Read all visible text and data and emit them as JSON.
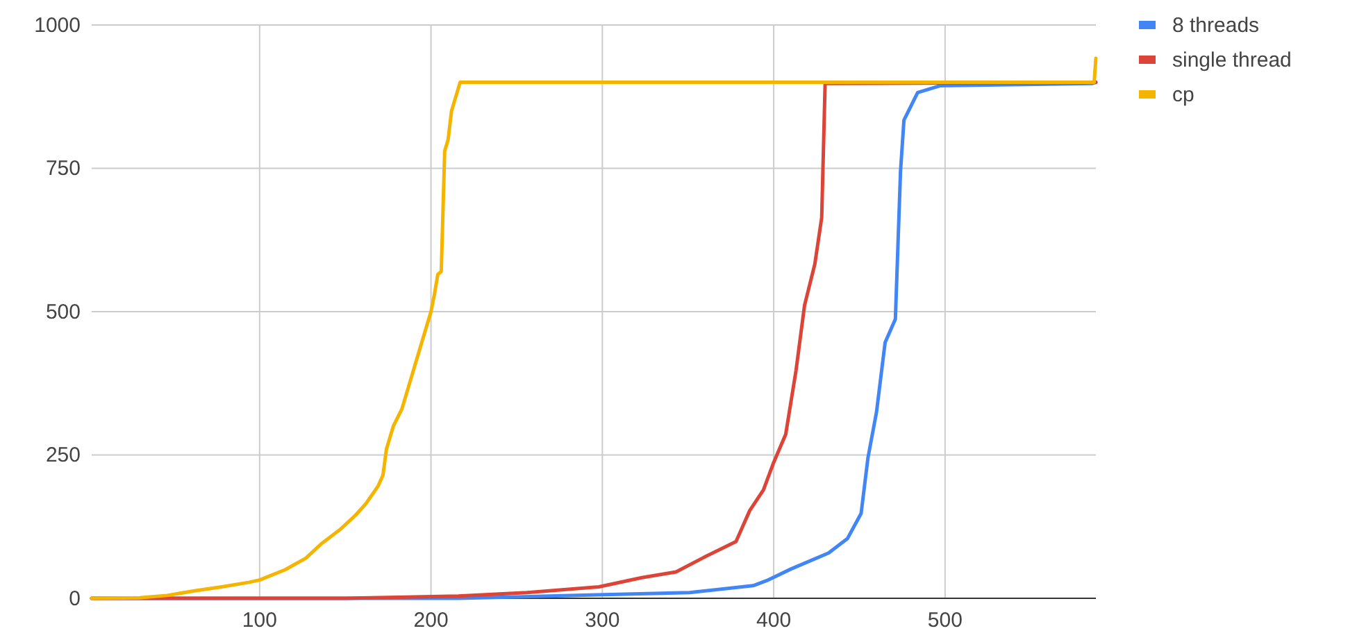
{
  "chart_data": {
    "type": "line",
    "xlim": [
      2,
      588
    ],
    "ylim": [
      0,
      1000
    ],
    "xticks": [
      100,
      200,
      300,
      400,
      500
    ],
    "yticks": [
      0,
      250,
      500,
      750,
      1000
    ],
    "grid": true,
    "legend": "top right",
    "marker": "none",
    "line_style": "solid",
    "series": [
      {
        "name": "8 threads",
        "color": "#4285f4",
        "x": [
          2,
          216,
          297,
          351,
          388,
          396,
          410,
          432,
          443,
          451,
          455,
          460,
          465,
          471,
          474,
          476,
          484,
          497,
          586,
          588
        ],
        "values": [
          0,
          0,
          6,
          10,
          22,
          31,
          51,
          79,
          104,
          148,
          245,
          325,
          446,
          487,
          745,
          834,
          882,
          894,
          898,
          900
        ]
      },
      {
        "name": "single thread",
        "color": "#db4437",
        "x": [
          2,
          150,
          216,
          256,
          298,
          323,
          343,
          359,
          378,
          386,
          394,
          400,
          407,
          413,
          418,
          424,
          428,
          430,
          588
        ],
        "values": [
          0,
          0,
          4,
          10,
          20,
          36,
          46,
          71,
          99,
          153,
          189,
          237,
          286,
          397,
          511,
          583,
          664,
          898,
          900
        ]
      },
      {
        "name": "cp",
        "color": "#f4b400",
        "x": [
          2,
          30,
          46,
          62,
          78,
          94,
          100,
          115,
          127,
          136,
          147,
          156,
          162,
          169,
          172,
          174,
          178,
          183,
          188,
          192,
          196,
          200,
          202,
          204,
          206,
          208,
          210,
          212,
          217,
          587,
          588
        ],
        "values": [
          0,
          1,
          5,
          13,
          20,
          28,
          32,
          50,
          70,
          95,
          120,
          145,
          165,
          195,
          215,
          260,
          300,
          330,
          380,
          420,
          460,
          500,
          530,
          565,
          570,
          780,
          800,
          850,
          900,
          900,
          942
        ]
      }
    ]
  }
}
